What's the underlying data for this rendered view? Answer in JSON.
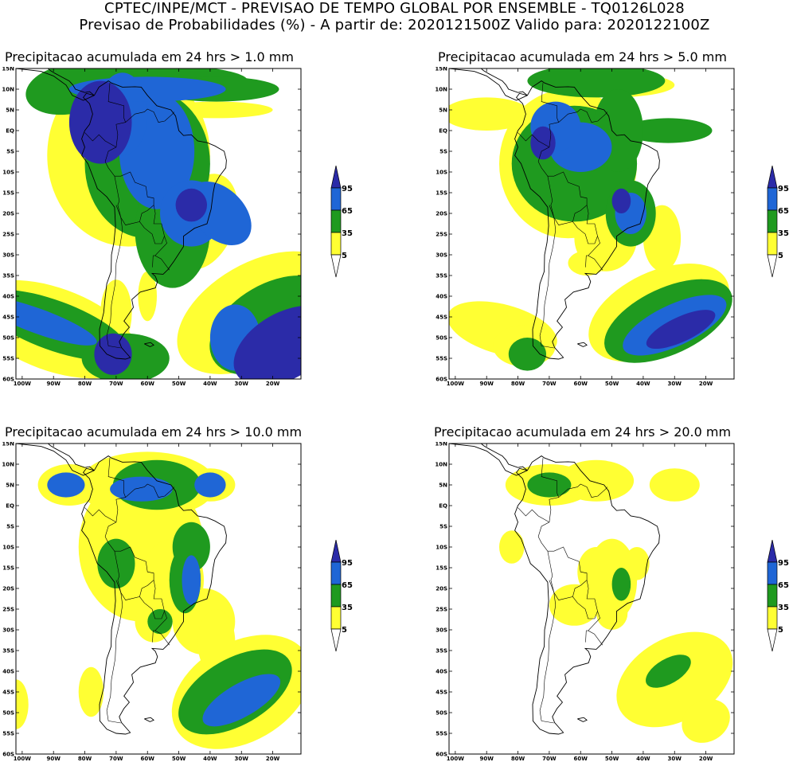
{
  "header": {
    "line1": "CPTEC/INPE/MCT - PREVISAO DE TEMPO GLOBAL POR ENSEMBLE - TQ0126L028",
    "line2": "Previsao de Probabilidades (%) -  A partir de: 2020121500Z  Valido para: 2020122100Z"
  },
  "panels": [
    {
      "title": "Precipitacao acumulada em 24 hrs > 1.0 mm",
      "threshold_mm": 1.0
    },
    {
      "title": "Precipitacao acumulada em 24 hrs > 5.0 mm",
      "threshold_mm": 5.0
    },
    {
      "title": "Precipitacao acumulada em 24 hrs > 10.0 mm",
      "threshold_mm": 10.0
    },
    {
      "title": "Precipitacao acumulada em 24 hrs > 20.0 mm",
      "threshold_mm": 20.0
    }
  ],
  "lat_ticks": [
    "15N",
    "10N",
    "5N",
    "EQ",
    "5S",
    "10S",
    "15S",
    "20S",
    "25S",
    "30S",
    "35S",
    "40S",
    "45S",
    "50S",
    "55S",
    "60S"
  ],
  "lon_ticks": [
    "100W",
    "90W",
    "80W",
    "70W",
    "60W",
    "50W",
    "40W",
    "30W",
    "20W"
  ],
  "legend": {
    "levels": [
      "95",
      "65",
      "35",
      "5"
    ],
    "colors": {
      "c5": "#ffff33",
      "c35": "#1f9a1f",
      "c65": "#1f66d6",
      "c95": "#2b2ba8",
      "land": "#ffffff"
    }
  }
}
